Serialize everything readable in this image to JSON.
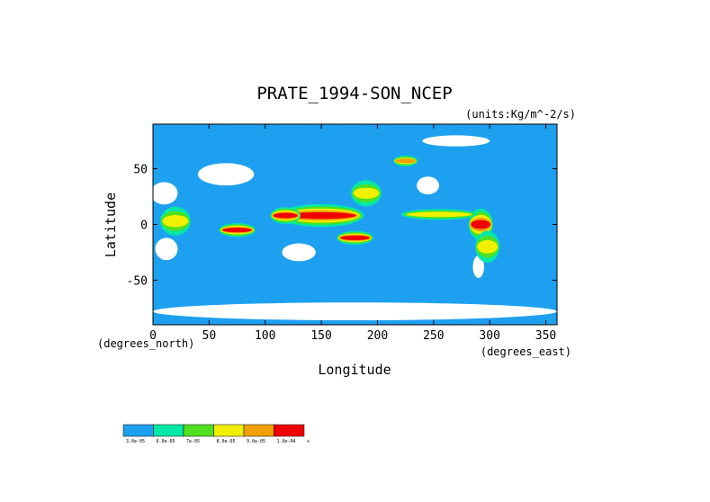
{
  "chart_data": {
    "type": "heatmap",
    "title": "PRATE_1994-SON_NCEP",
    "units_label": "(units:Kg/m^-2/s)",
    "xlabel": "Longitude",
    "ylabel": "Latitude",
    "xunit_label": "(degrees_east)",
    "yunit_label": "(degrees_north)",
    "xlim": [
      0,
      360
    ],
    "ylim": [
      -90,
      90
    ],
    "x_ticks": [
      {
        "value": 0,
        "label": "0"
      },
      {
        "value": 50,
        "label": "50"
      },
      {
        "value": 100,
        "label": "100"
      },
      {
        "value": 150,
        "label": "150"
      },
      {
        "value": 200,
        "label": "200"
      },
      {
        "value": 250,
        "label": "250"
      },
      {
        "value": 300,
        "label": "300"
      },
      {
        "value": 350,
        "label": "350"
      }
    ],
    "y_ticks": [
      {
        "value": 50,
        "label": "50"
      },
      {
        "value": 0,
        "label": "0"
      },
      {
        "value": -50,
        "label": "-50"
      }
    ],
    "colorbar": [
      {
        "label": "3.0e-05",
        "color": "#1ea0f0"
      },
      {
        "label": "6.0e-05",
        "color": "#00e8a8"
      },
      {
        "label": "7e-05",
        "color": "#50e020"
      },
      {
        "label": "8.0e-05",
        "color": "#f0f000"
      },
      {
        "label": "9.0e-05",
        "color": "#f0a000"
      },
      {
        "label": "1.0e-04",
        "color": "#f00000"
      },
      {
        "label": "∞",
        "color": null
      }
    ],
    "background_color": "#1ea0f0",
    "blobs": [
      {
        "lon": 150,
        "lat": 8,
        "rlon": 28,
        "rlat": 7,
        "level": 5
      },
      {
        "lon": 118,
        "lat": 8,
        "rlon": 10,
        "rlat": 5,
        "level": 5
      },
      {
        "lon": 75,
        "lat": -5,
        "rlon": 12,
        "rlat": 4,
        "level": 5
      },
      {
        "lon": 180,
        "lat": -12,
        "rlon": 12,
        "rlat": 4,
        "level": 5
      },
      {
        "lon": 292,
        "lat": 0,
        "rlon": 8,
        "rlat": 10,
        "level": 5
      },
      {
        "lon": 20,
        "lat": 3,
        "rlon": 10,
        "rlat": 9,
        "level": 3
      },
      {
        "lon": 255,
        "lat": 9,
        "rlon": 25,
        "rlat": 3,
        "level": 3
      },
      {
        "lon": 190,
        "lat": 28,
        "rlon": 10,
        "rlat": 8,
        "level": 3
      },
      {
        "lon": 298,
        "lat": -20,
        "rlon": 8,
        "rlat": 10,
        "level": 3
      },
      {
        "lon": 225,
        "lat": 57,
        "rlon": 8,
        "rlat": 3,
        "level": 4
      }
    ],
    "white_regions": [
      {
        "lon": 65,
        "lat": 45,
        "rlon": 25,
        "rlat": 10
      },
      {
        "lon": 10,
        "lat": 28,
        "rlon": 12,
        "rlat": 10
      },
      {
        "lon": 12,
        "lat": -22,
        "rlon": 10,
        "rlat": 10
      },
      {
        "lon": 130,
        "lat": -25,
        "rlon": 15,
        "rlat": 8
      },
      {
        "lon": 245,
        "lat": 35,
        "rlon": 10,
        "rlat": 8
      },
      {
        "lon": 290,
        "lat": -38,
        "rlon": 5,
        "rlat": 10
      },
      {
        "lon": 180,
        "lat": -78,
        "rlon": 180,
        "rlat": 8
      },
      {
        "lon": 270,
        "lat": 75,
        "rlon": 30,
        "rlat": 5
      }
    ]
  }
}
